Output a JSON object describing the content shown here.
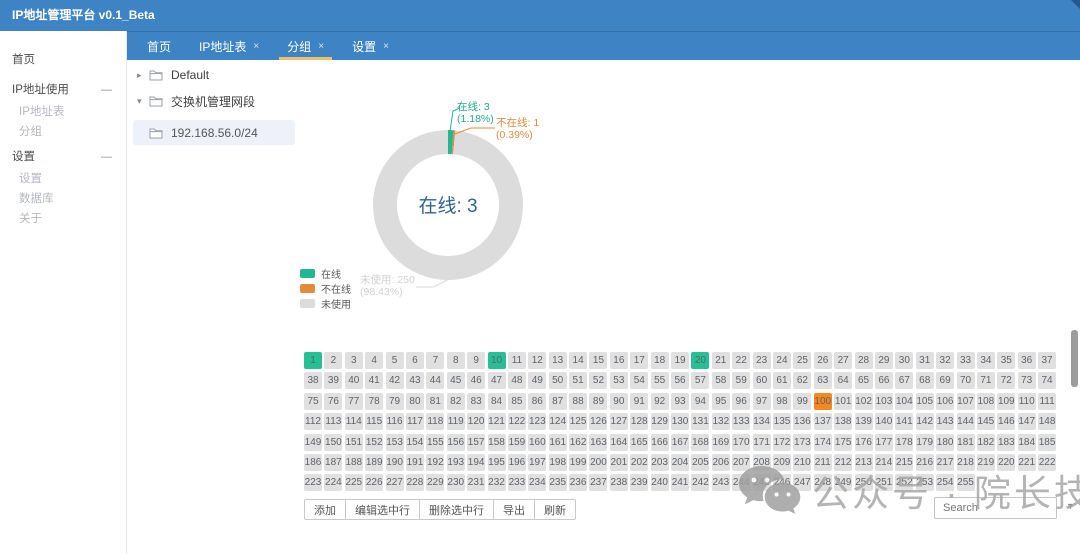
{
  "header": {
    "title": "IP地址管理平台 v0.1_Beta"
  },
  "sidebar": {
    "items": [
      {
        "label": "首页",
        "level": 0,
        "group": false
      },
      {
        "label": "IP地址使用",
        "level": 0,
        "group": true,
        "collapse_icon": "—"
      },
      {
        "label": "IP地址表",
        "level": 1,
        "group": false
      },
      {
        "label": "分组",
        "level": 1,
        "group": false
      },
      {
        "label": "设置",
        "level": 0,
        "group": true,
        "collapse_icon": "—"
      },
      {
        "label": "设置",
        "level": 1,
        "group": false
      },
      {
        "label": "数据库",
        "level": 1,
        "group": false
      },
      {
        "label": "关于",
        "level": 1,
        "group": false
      }
    ]
  },
  "tabs": [
    {
      "label": "首页",
      "closable": false,
      "active": false
    },
    {
      "label": "IP地址表",
      "closable": true,
      "active": false
    },
    {
      "label": "分组",
      "closable": true,
      "active": true
    },
    {
      "label": "设置",
      "closable": true,
      "active": false
    }
  ],
  "tree": [
    {
      "label": "Default",
      "state": "collapsed",
      "level": 0,
      "selected": false
    },
    {
      "label": "交换机管理网段",
      "state": "expanded",
      "level": 0,
      "selected": false
    },
    {
      "label": "192.168.56.0/24",
      "state": "leaf",
      "level": 1,
      "selected": true
    }
  ],
  "chart_data": {
    "type": "pie",
    "title": "",
    "center_label": "在线: 3",
    "total": 254,
    "series": [
      {
        "name": "在线",
        "value": 3,
        "pct": "1.18%",
        "color": "#23b791"
      },
      {
        "name": "不在线",
        "value": 1,
        "pct": "0.39%",
        "color": "#e58a3c"
      },
      {
        "name": "未使用",
        "value": 250,
        "pct": "98.43%",
        "color": "#dcdcdc"
      }
    ],
    "legend_position": "left-bottom",
    "callout_colors": [
      "#23a98c",
      "#dd8a42",
      "#d2d2d2"
    ]
  },
  "grid": {
    "start": 1,
    "end": 255,
    "columns": 37,
    "online": [
      1,
      10,
      20
    ],
    "offline": [
      100
    ],
    "online_color": "#26bf96",
    "offline_color": "#f5871f",
    "unused_color": "#e0e0e0"
  },
  "toolbar": {
    "buttons": [
      "添加",
      "编辑选中行",
      "删除选中行",
      "导出",
      "刷新"
    ]
  },
  "search": {
    "placeholder": "Search"
  },
  "watermark": {
    "text": "公众号 · 院长技术"
  }
}
